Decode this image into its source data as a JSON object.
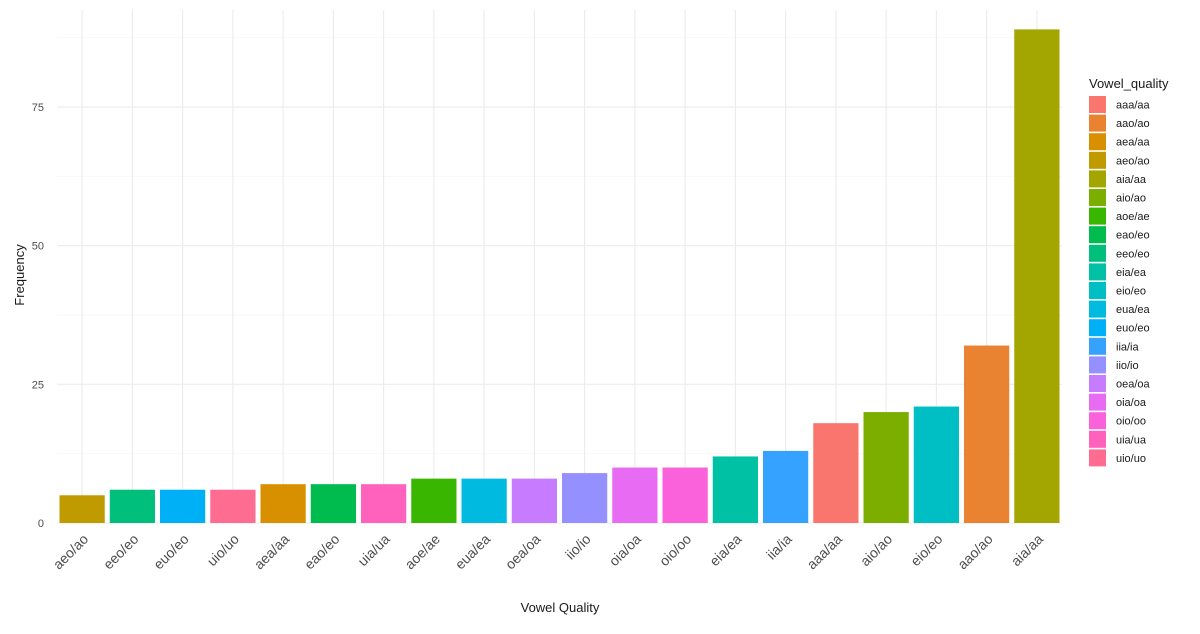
{
  "chart_data": {
    "type": "bar",
    "xlabel": "Vowel Quality",
    "ylabel": "Frequency",
    "ylim": [
      0,
      90
    ],
    "yticks": [
      0,
      25,
      50,
      75
    ],
    "grid": true,
    "legend_position": "right",
    "legend_title": "Vowel_quality",
    "categories": [
      "aeo/ao",
      "eeo/eo",
      "euo/eo",
      "uio/uo",
      "aea/aa",
      "eao/eo",
      "uia/ua",
      "aoe/ae",
      "eua/ea",
      "oea/oa",
      "iio/io",
      "oia/oa",
      "oio/oo",
      "eia/ea",
      "iia/ia",
      "aaa/aa",
      "aio/ao",
      "eio/eo",
      "aao/ao",
      "aia/aa"
    ],
    "values": [
      5,
      6,
      6,
      6,
      7,
      7,
      7,
      8,
      8,
      8,
      9,
      10,
      10,
      12,
      13,
      18,
      20,
      21,
      32,
      89
    ],
    "legend": [
      {
        "label": "aaa/aa",
        "color": "#F8766D"
      },
      {
        "label": "aao/ao",
        "color": "#EA8331"
      },
      {
        "label": "aea/aa",
        "color": "#D89000"
      },
      {
        "label": "aeo/ao",
        "color": "#C09B00"
      },
      {
        "label": "aia/aa",
        "color": "#A3A500"
      },
      {
        "label": "aio/ao",
        "color": "#7CAE00"
      },
      {
        "label": "aoe/ae",
        "color": "#39B600"
      },
      {
        "label": "eao/eo",
        "color": "#00BB4E"
      },
      {
        "label": "eeo/eo",
        "color": "#00BF7D"
      },
      {
        "label": "eia/ea",
        "color": "#00C1A3"
      },
      {
        "label": "eio/eo",
        "color": "#00BFC4"
      },
      {
        "label": "eua/ea",
        "color": "#00BAE0"
      },
      {
        "label": "euo/eo",
        "color": "#00B0F6"
      },
      {
        "label": "iia/ia",
        "color": "#35A2FF"
      },
      {
        "label": "iio/io",
        "color": "#9590FF"
      },
      {
        "label": "oea/oa",
        "color": "#C77CFF"
      },
      {
        "label": "oia/oa",
        "color": "#E76BF3"
      },
      {
        "label": "oio/oo",
        "color": "#FA62DB"
      },
      {
        "label": "uia/ua",
        "color": "#FF62BC"
      },
      {
        "label": "uio/uo",
        "color": "#FF6C91"
      }
    ]
  }
}
